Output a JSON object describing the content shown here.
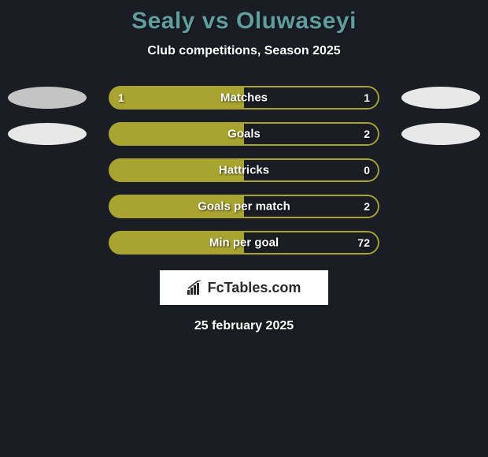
{
  "title": "Sealy vs Oluwaseyi",
  "subtitle": "Club competitions, Season 2025",
  "date": "25 february 2025",
  "logo_text": "FcTables.com",
  "colors": {
    "background": "#1a1d24",
    "title_color": "#5f9e9e",
    "text_color": "#ffffff",
    "left_fill": "#a9a32f",
    "left_ellipse": "#c4c4c4",
    "right_ellipse": "#e8e8e8"
  },
  "stats": [
    {
      "label": "Matches",
      "left_value": "1",
      "right_value": "1",
      "left_pct": 50,
      "right_pct": 0,
      "fill_color": "#a9a32f",
      "outline_color": "#a9a32f",
      "show_ellipses": true,
      "left_ellipse_color": "#c4c4c4",
      "right_ellipse_color": "#e8e8e8"
    },
    {
      "label": "Goals",
      "left_value": "",
      "right_value": "2",
      "left_pct": 50,
      "right_pct": 0,
      "fill_color": "#a9a32f",
      "outline_color": "#a9a32f",
      "show_ellipses": true,
      "left_ellipse_color": "#e8e8e8",
      "right_ellipse_color": "#e8e8e8"
    },
    {
      "label": "Hattricks",
      "left_value": "",
      "right_value": "0",
      "left_pct": 50,
      "right_pct": 0,
      "fill_color": "#a9a32f",
      "outline_color": "#a9a32f",
      "show_ellipses": false
    },
    {
      "label": "Goals per match",
      "left_value": "",
      "right_value": "2",
      "left_pct": 50,
      "right_pct": 0,
      "fill_color": "#a9a32f",
      "outline_color": "#a9a32f",
      "show_ellipses": false
    },
    {
      "label": "Min per goal",
      "left_value": "",
      "right_value": "72",
      "left_pct": 50,
      "right_pct": 0,
      "fill_color": "#a9a32f",
      "outline_color": "#a9a32f",
      "show_ellipses": false
    }
  ]
}
